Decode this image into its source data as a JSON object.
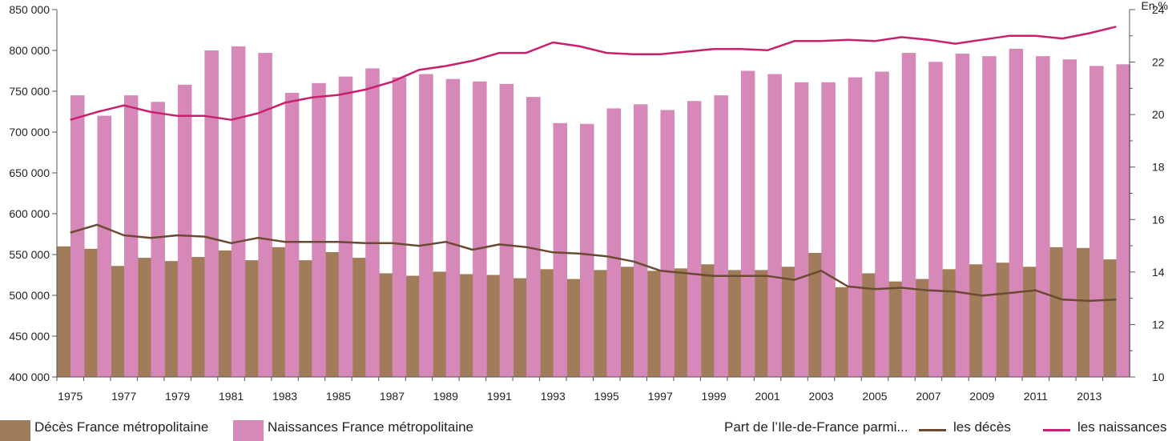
{
  "chart_data": {
    "type": "bar+line",
    "unit_right": "En %",
    "years": [
      1975,
      1976,
      1977,
      1978,
      1979,
      1980,
      1981,
      1982,
      1983,
      1984,
      1985,
      1986,
      1987,
      1988,
      1989,
      1990,
      1991,
      1992,
      1993,
      1994,
      1995,
      1996,
      1997,
      1998,
      1999,
      2000,
      2001,
      2002,
      2003,
      2004,
      2005,
      2006,
      2007,
      2008,
      2009,
      2010,
      2011,
      2012,
      2013,
      2014
    ],
    "x_tick_labels": [
      "1975",
      "1977",
      "1979",
      "1981",
      "1983",
      "1985",
      "1987",
      "1989",
      "1991",
      "1993",
      "1995",
      "1997",
      "1999",
      "2001",
      "2003",
      "2005",
      "2007",
      "2009",
      "2011",
      "2013"
    ],
    "y_left": {
      "min": 400000,
      "max": 850000,
      "step": 50000,
      "tick_labels": [
        "400 000",
        "450 000",
        "500 000",
        "550 000",
        "600 000",
        "650 000",
        "700 000",
        "750 000",
        "800 000",
        "850 000"
      ]
    },
    "y_right": {
      "min": 10,
      "max": 24,
      "step": 2,
      "tick_labels": [
        "10",
        "12",
        "14",
        "16",
        "18",
        "20",
        "22",
        "24"
      ]
    },
    "bar_series": [
      {
        "name": "Décès France métropolitaine",
        "color": "#a07c5a",
        "values": [
          560000,
          557000,
          536000,
          546000,
          542000,
          547000,
          555000,
          543000,
          559000,
          543000,
          553000,
          546000,
          527000,
          524000,
          529000,
          526000,
          525000,
          521000,
          532000,
          520000,
          531000,
          535000,
          530000,
          533000,
          538000,
          531000,
          531000,
          535000,
          552000,
          510000,
          527000,
          517000,
          520000,
          532000,
          538000,
          540000,
          535000,
          559000,
          558000,
          544000
        ]
      },
      {
        "name": "Naissances France métropolitaine",
        "color": "#d688b8",
        "values": [
          745000,
          720000,
          745000,
          737000,
          758000,
          800000,
          805000,
          797000,
          748000,
          760000,
          768000,
          778000,
          767000,
          771000,
          765000,
          762000,
          759000,
          743000,
          711000,
          710000,
          729000,
          734000,
          727000,
          738000,
          745000,
          775000,
          771000,
          761000,
          761000,
          767000,
          774000,
          797000,
          786000,
          796000,
          793000,
          802000,
          793000,
          789000,
          781000,
          783000
        ]
      }
    ],
    "line_axis_label": "Part de l’Ile-de-France parmi...",
    "line_series": [
      {
        "name": "les décès",
        "color": "#6b4a32",
        "values": [
          15.5,
          15.8,
          15.4,
          15.3,
          15.4,
          15.35,
          15.1,
          15.3,
          15.15,
          15.15,
          15.15,
          15.1,
          15.1,
          15.0,
          15.15,
          14.85,
          15.05,
          14.95,
          14.75,
          14.7,
          14.6,
          14.4,
          14.05,
          13.95,
          13.85,
          13.85,
          13.85,
          13.7,
          14.05,
          13.45,
          13.35,
          13.4,
          13.3,
          13.25,
          13.1,
          13.2,
          13.3,
          12.95,
          12.9,
          12.95
        ]
      },
      {
        "name": "les naissances",
        "color": "#c8206e",
        "values": [
          19.8,
          20.1,
          20.35,
          20.1,
          19.95,
          19.95,
          19.8,
          20.05,
          20.45,
          20.65,
          20.75,
          20.95,
          21.25,
          21.7,
          21.85,
          22.05,
          22.35,
          22.35,
          22.75,
          22.6,
          22.35,
          22.3,
          22.3,
          22.4,
          22.5,
          22.5,
          22.45,
          22.8,
          22.8,
          22.85,
          22.8,
          22.95,
          22.85,
          22.7,
          22.85,
          23.0,
          23.0,
          22.9,
          23.1,
          23.35
        ]
      }
    ],
    "legend": {
      "bar_deces": "Décès France métropolitaine",
      "bar_naissances": "Naissances France métropolitaine",
      "line_title": "Part de l’Ile-de-France parmi...",
      "line_deces": "les décès",
      "line_naissances": "les naissances"
    },
    "grid": false
  }
}
